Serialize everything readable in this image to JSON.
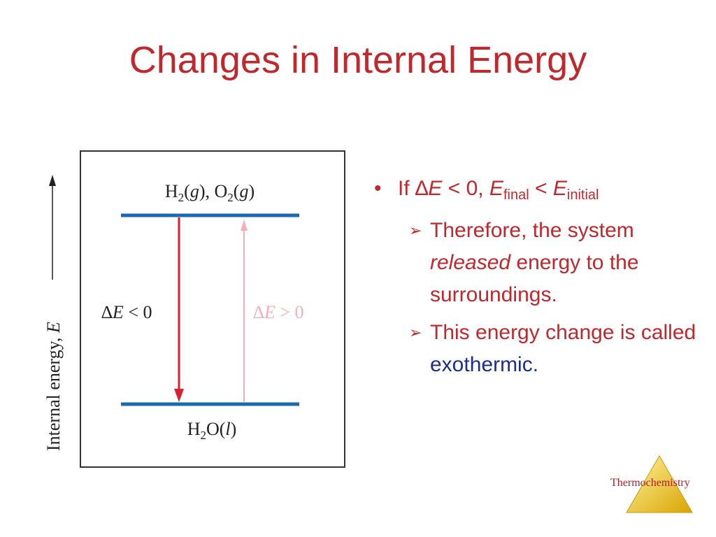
{
  "title": "Changes in Internal Energy",
  "diagram": {
    "axis_label": [
      "Internal energy, ",
      "E"
    ],
    "top_state": [
      "H",
      "2",
      "(",
      "g",
      "), O",
      "2",
      "(",
      "g",
      ")"
    ],
    "bottom_state": [
      "H",
      "2",
      "O(",
      "l",
      ")"
    ],
    "down_label": [
      "∆",
      "E",
      " < 0"
    ],
    "up_label": [
      "∆",
      "E",
      " > 0"
    ]
  },
  "bullets": [
    {
      "text": [
        "If ",
        "∆",
        "E",
        " < 0, ",
        "E",
        "final",
        " < ",
        "E",
        "initial"
      ],
      "sub": [
        [
          "Therefore, the system ",
          "released",
          " energy to the surroundings."
        ],
        [
          "This energy change is called ",
          "exothermic."
        ]
      ]
    }
  ],
  "footer": "Thermochemistry"
}
